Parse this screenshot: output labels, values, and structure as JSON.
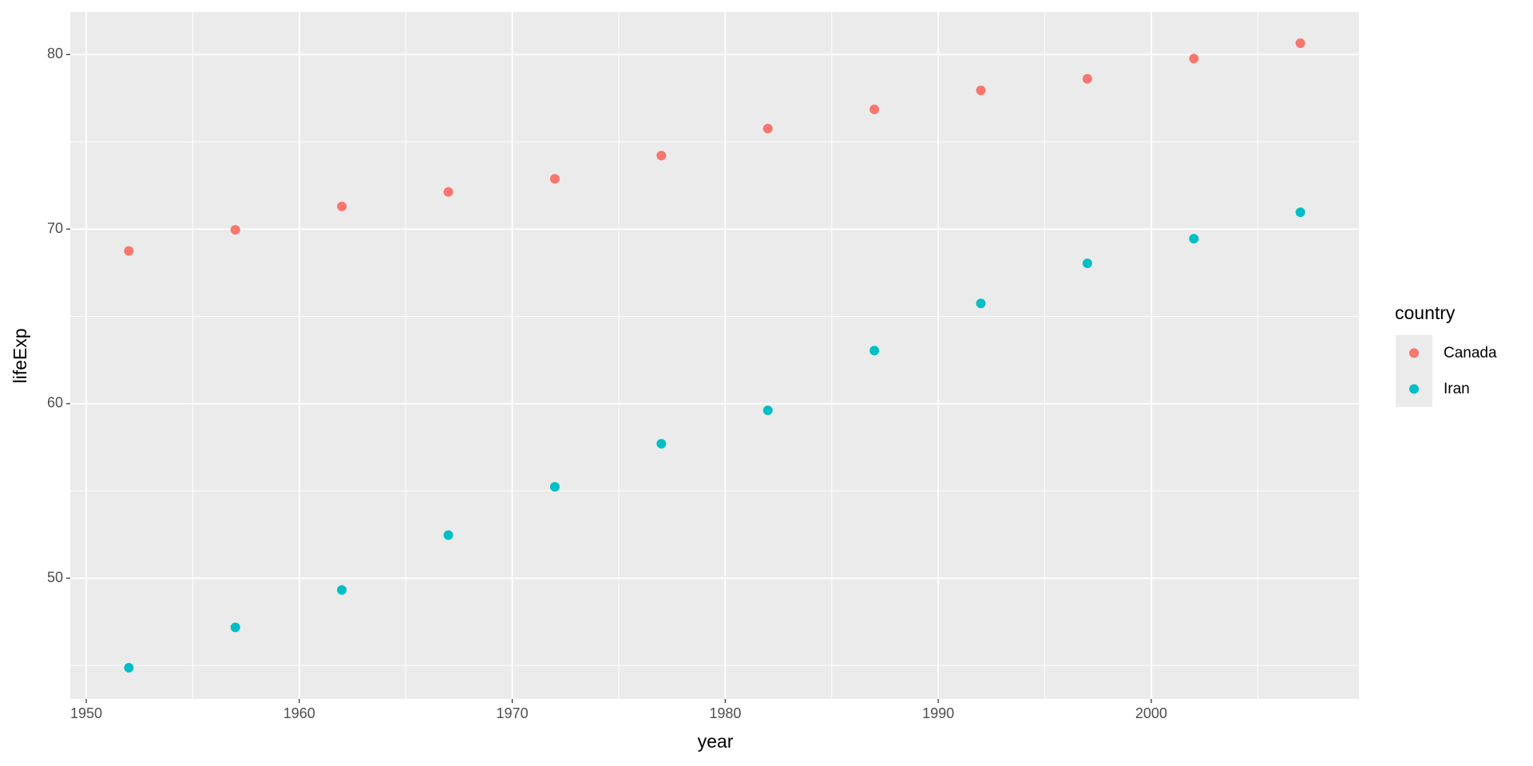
{
  "chart_data": {
    "type": "scatter",
    "x_label": "year",
    "y_label": "lifeExp",
    "x": [
      1952,
      1957,
      1962,
      1967,
      1972,
      1977,
      1982,
      1987,
      1992,
      1997,
      2002,
      2007
    ],
    "series": [
      {
        "name": "Canada",
        "color": "#F8766D",
        "values": [
          68.75,
          69.96,
          71.3,
          72.13,
          72.88,
          74.21,
          75.76,
          76.86,
          77.95,
          78.61,
          79.77,
          80.653
        ]
      },
      {
        "name": "Iran",
        "color": "#00BFC4",
        "values": [
          44.869,
          47.181,
          49.325,
          52.469,
          55.234,
          57.702,
          59.62,
          63.04,
          65.742,
          68.042,
          69.451,
          70.964
        ]
      }
    ],
    "legend_title": "country",
    "legend": "right",
    "xlim": [
      1949.25,
      2009.75
    ],
    "xticks": [
      1950,
      1960,
      1970,
      1980,
      1990,
      2000
    ],
    "ylim": [
      43.08,
      82.44
    ],
    "yticks": [
      50,
      60,
      70,
      80
    ],
    "grid": true
  }
}
